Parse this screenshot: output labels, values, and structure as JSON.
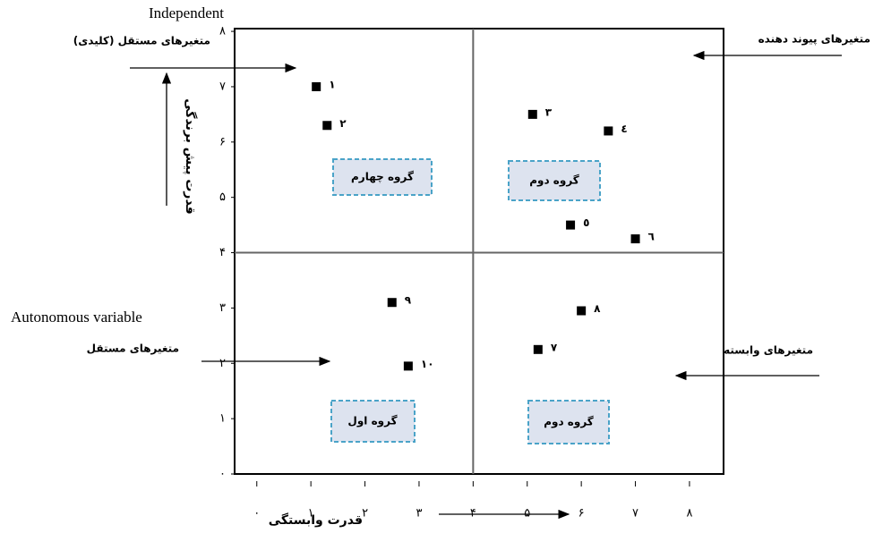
{
  "chart_data": {
    "type": "scatter",
    "x_label": "قدرت وابستگی",
    "y_label": "قدرت پیش برندگی",
    "x": [
      1.1,
      1.3,
      5.1,
      6.5,
      5.8,
      7.0,
      5.2,
      6.0,
      2.5,
      2.8
    ],
    "values": [
      7.0,
      6.3,
      6.5,
      6.2,
      4.5,
      4.25,
      2.25,
      2.95,
      3.1,
      1.95
    ],
    "point_labels": [
      "١",
      "٢",
      "٣",
      "٤",
      "٥",
      "٦",
      "٧",
      "٨",
      "٩",
      "١٠"
    ],
    "color": "#000000",
    "xlim": [
      -0.41,
      8.63
    ],
    "ylim": [
      0,
      8.05
    ],
    "xticks": [
      {
        "value": 0,
        "label": "٠"
      },
      {
        "value": 1,
        "label": "١"
      },
      {
        "value": 2,
        "label": "٢"
      },
      {
        "value": 3,
        "label": "٣"
      },
      {
        "value": 4,
        "label": "۴"
      },
      {
        "value": 5,
        "label": "۵"
      },
      {
        "value": 6,
        "label": "۶"
      },
      {
        "value": 7,
        "label": "٧"
      },
      {
        "value": 8,
        "label": "٨"
      }
    ],
    "yticks": [
      {
        "value": 0,
        "label": "٠"
      },
      {
        "value": 1,
        "label": "١"
      },
      {
        "value": 2,
        "label": "٢"
      },
      {
        "value": 3,
        "label": "٣"
      },
      {
        "value": 4,
        "label": "۴"
      },
      {
        "value": 5,
        "label": "۵"
      },
      {
        "value": 6,
        "label": "۶"
      },
      {
        "value": 7,
        "label": "٧"
      },
      {
        "value": 8,
        "label": "٨"
      }
    ],
    "dividers": {
      "x": 4,
      "y": 4
    },
    "quadrants": [
      "گروه چهارم",
      "گروه دوم",
      "گروه اول",
      "گروه دوم"
    ],
    "annotations": [
      "Independent",
      "متغیرهای مستقل (کلیدی)",
      "متغیرهای پیوند دهنده",
      "Autonomous variable",
      "متغیرهای مستقل",
      "متغیرهای وابسته"
    ]
  }
}
